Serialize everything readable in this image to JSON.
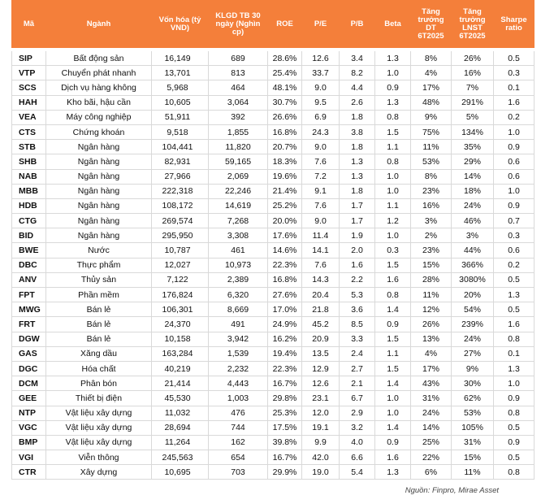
{
  "header": {
    "ma": "Mã",
    "nganh": "Ngành",
    "von_hoa": "Vốn hóa (tỷ VND)",
    "klgd": "KLGD TB 30 ngày (Nghìn cp)",
    "roe": "ROE",
    "pe": "P/E",
    "pb": "P/B",
    "beta": "Beta",
    "tang_truong_dt": "Tăng trưởng DT 6T2025",
    "tang_truong_lnst": "Tăng trưởng LNST 6T2025",
    "sharpe": "Sharpe ratio"
  },
  "rows": [
    {
      "ma": "SIP",
      "nganh": "Bất động sản",
      "von_hoa": "16,149",
      "klgd": "689",
      "roe": "28.6%",
      "pe": "12.6",
      "pb": "3.4",
      "beta": "1.3",
      "dt": "8%",
      "lnst": "26%",
      "sharpe": "0.5"
    },
    {
      "ma": "VTP",
      "nganh": "Chuyển phát nhanh",
      "von_hoa": "13,701",
      "klgd": "813",
      "roe": "25.4%",
      "pe": "33.7",
      "pb": "8.2",
      "beta": "1.0",
      "dt": "4%",
      "lnst": "16%",
      "sharpe": "0.3"
    },
    {
      "ma": "SCS",
      "nganh": "Dịch vụ hàng không",
      "von_hoa": "5,968",
      "klgd": "464",
      "roe": "48.1%",
      "pe": "9.0",
      "pb": "4.4",
      "beta": "0.9",
      "dt": "17%",
      "lnst": "7%",
      "sharpe": "0.1"
    },
    {
      "ma": "HAH",
      "nganh": "Kho bãi, hậu cần",
      "von_hoa": "10,605",
      "klgd": "3,064",
      "roe": "30.7%",
      "pe": "9.5",
      "pb": "2.6",
      "beta": "1.3",
      "dt": "48%",
      "lnst": "291%",
      "sharpe": "1.6"
    },
    {
      "ma": "VEA",
      "nganh": "Máy công nghiệp",
      "von_hoa": "51,911",
      "klgd": "392",
      "roe": "26.6%",
      "pe": "6.9",
      "pb": "1.8",
      "beta": "0.8",
      "dt": "9%",
      "lnst": "5%",
      "sharpe": "0.2"
    },
    {
      "ma": "CTS",
      "nganh": "Chứng khoán",
      "von_hoa": "9,518",
      "klgd": "1,855",
      "roe": "16.8%",
      "pe": "24.3",
      "pb": "3.8",
      "beta": "1.5",
      "dt": "75%",
      "lnst": "134%",
      "sharpe": "1.0"
    },
    {
      "ma": "STB",
      "nganh": "Ngân hàng",
      "von_hoa": "104,441",
      "klgd": "11,820",
      "roe": "20.7%",
      "pe": "9.0",
      "pb": "1.8",
      "beta": "1.1",
      "dt": "11%",
      "lnst": "35%",
      "sharpe": "0.9"
    },
    {
      "ma": "SHB",
      "nganh": "Ngân hàng",
      "von_hoa": "82,931",
      "klgd": "59,165",
      "roe": "18.3%",
      "pe": "7.6",
      "pb": "1.3",
      "beta": "0.8",
      "dt": "53%",
      "lnst": "29%",
      "sharpe": "0.6"
    },
    {
      "ma": "NAB",
      "nganh": "Ngân hàng",
      "von_hoa": "27,966",
      "klgd": "2,069",
      "roe": "19.6%",
      "pe": "7.2",
      "pb": "1.3",
      "beta": "1.0",
      "dt": "8%",
      "lnst": "14%",
      "sharpe": "0.6"
    },
    {
      "ma": "MBB",
      "nganh": "Ngân hàng",
      "von_hoa": "222,318",
      "klgd": "22,246",
      "roe": "21.4%",
      "pe": "9.1",
      "pb": "1.8",
      "beta": "1.0",
      "dt": "23%",
      "lnst": "18%",
      "sharpe": "1.0"
    },
    {
      "ma": "HDB",
      "nganh": "Ngân hàng",
      "von_hoa": "108,172",
      "klgd": "14,619",
      "roe": "25.2%",
      "pe": "7.6",
      "pb": "1.7",
      "beta": "1.1",
      "dt": "16%",
      "lnst": "24%",
      "sharpe": "0.9"
    },
    {
      "ma": "CTG",
      "nganh": "Ngân hàng",
      "von_hoa": "269,574",
      "klgd": "7,268",
      "roe": "20.0%",
      "pe": "9.0",
      "pb": "1.7",
      "beta": "1.2",
      "dt": "3%",
      "lnst": "46%",
      "sharpe": "0.7"
    },
    {
      "ma": "BID",
      "nganh": "Ngân hàng",
      "von_hoa": "295,950",
      "klgd": "3,308",
      "roe": "17.6%",
      "pe": "11.4",
      "pb": "1.9",
      "beta": "1.0",
      "dt": "2%",
      "lnst": "3%",
      "sharpe": "0.3"
    },
    {
      "ma": "BWE",
      "nganh": "Nước",
      "von_hoa": "10,787",
      "klgd": "461",
      "roe": "14.6%",
      "pe": "14.1",
      "pb": "2.0",
      "beta": "0.3",
      "dt": "23%",
      "lnst": "44%",
      "sharpe": "0.6"
    },
    {
      "ma": "DBC",
      "nganh": "Thực phẩm",
      "von_hoa": "12,027",
      "klgd": "10,973",
      "roe": "22.3%",
      "pe": "7.6",
      "pb": "1.6",
      "beta": "1.5",
      "dt": "15%",
      "lnst": "366%",
      "sharpe": "0.2"
    },
    {
      "ma": "ANV",
      "nganh": "Thủy sản",
      "von_hoa": "7,122",
      "klgd": "2,389",
      "roe": "16.8%",
      "pe": "14.3",
      "pb": "2.2",
      "beta": "1.6",
      "dt": "28%",
      "lnst": "3080%",
      "sharpe": "0.5"
    },
    {
      "ma": "FPT",
      "nganh": "Phần mềm",
      "von_hoa": "176,824",
      "klgd": "6,320",
      "roe": "27.6%",
      "pe": "20.4",
      "pb": "5.3",
      "beta": "0.8",
      "dt": "11%",
      "lnst": "20%",
      "sharpe": "1.3"
    },
    {
      "ma": "MWG",
      "nganh": "Bán lẻ",
      "von_hoa": "106,301",
      "klgd": "8,669",
      "roe": "17.0%",
      "pe": "21.8",
      "pb": "3.6",
      "beta": "1.4",
      "dt": "12%",
      "lnst": "54%",
      "sharpe": "0.5"
    },
    {
      "ma": "FRT",
      "nganh": "Bán lẻ",
      "von_hoa": "24,370",
      "klgd": "491",
      "roe": "24.9%",
      "pe": "45.2",
      "pb": "8.5",
      "beta": "0.9",
      "dt": "26%",
      "lnst": "239%",
      "sharpe": "1.6"
    },
    {
      "ma": "DGW",
      "nganh": "Bán lẻ",
      "von_hoa": "10,158",
      "klgd": "3,942",
      "roe": "16.2%",
      "pe": "20.9",
      "pb": "3.3",
      "beta": "1.5",
      "dt": "13%",
      "lnst": "24%",
      "sharpe": "0.8"
    },
    {
      "ma": "GAS",
      "nganh": "Xăng dầu",
      "von_hoa": "163,284",
      "klgd": "1,539",
      "roe": "19.4%",
      "pe": "13.5",
      "pb": "2.4",
      "beta": "1.1",
      "dt": "4%",
      "lnst": "27%",
      "sharpe": "0.1"
    },
    {
      "ma": "DGC",
      "nganh": "Hóa chất",
      "von_hoa": "40,219",
      "klgd": "2,232",
      "roe": "22.3%",
      "pe": "12.9",
      "pb": "2.7",
      "beta": "1.5",
      "dt": "17%",
      "lnst": "9%",
      "sharpe": "1.3"
    },
    {
      "ma": "DCM",
      "nganh": "Phân bón",
      "von_hoa": "21,414",
      "klgd": "4,443",
      "roe": "16.7%",
      "pe": "12.6",
      "pb": "2.1",
      "beta": "1.4",
      "dt": "43%",
      "lnst": "30%",
      "sharpe": "1.0"
    },
    {
      "ma": "GEE",
      "nganh": "Thiết bị điện",
      "von_hoa": "45,530",
      "klgd": "1,003",
      "roe": "29.8%",
      "pe": "23.1",
      "pb": "6.7",
      "beta": "1.0",
      "dt": "31%",
      "lnst": "62%",
      "sharpe": "0.9"
    },
    {
      "ma": "NTP",
      "nganh": "Vật liệu xây dựng",
      "von_hoa": "11,032",
      "klgd": "476",
      "roe": "25.3%",
      "pe": "12.0",
      "pb": "2.9",
      "beta": "1.0",
      "dt": "24%",
      "lnst": "53%",
      "sharpe": "0.8"
    },
    {
      "ma": "VGC",
      "nganh": "Vật liệu xây dựng",
      "von_hoa": "28,694",
      "klgd": "744",
      "roe": "17.5%",
      "pe": "19.1",
      "pb": "3.2",
      "beta": "1.4",
      "dt": "14%",
      "lnst": "105%",
      "sharpe": "0.5"
    },
    {
      "ma": "BMP",
      "nganh": "Vật liệu xây dựng",
      "von_hoa": "11,264",
      "klgd": "162",
      "roe": "39.8%",
      "pe": "9.9",
      "pb": "4.0",
      "beta": "0.9",
      "dt": "25%",
      "lnst": "31%",
      "sharpe": "0.9"
    },
    {
      "ma": "VGI",
      "nganh": "Viễn thông",
      "von_hoa": "245,563",
      "klgd": "654",
      "roe": "16.7%",
      "pe": "42.0",
      "pb": "6.6",
      "beta": "1.6",
      "dt": "22%",
      "lnst": "15%",
      "sharpe": "0.5"
    },
    {
      "ma": "CTR",
      "nganh": "Xây dựng",
      "von_hoa": "10,695",
      "klgd": "703",
      "roe": "29.9%",
      "pe": "19.0",
      "pb": "5.4",
      "beta": "1.3",
      "dt": "6%",
      "lnst": "11%",
      "sharpe": "0.8"
    }
  ],
  "source": "Nguồn: Finpro, Mirae Asset",
  "colors": {
    "header_bg": "#f47f3a",
    "header_text": "#ffffff",
    "grid": "#d9d9d9"
  }
}
